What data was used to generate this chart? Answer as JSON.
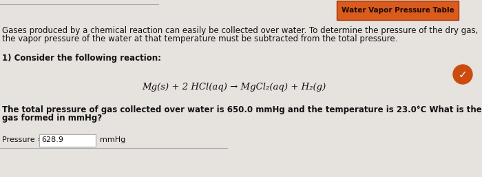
{
  "bg_color": "#e6e2de",
  "title_box_color": "#d95b1e",
  "title_box_text": "Water Vapor Pressure Table",
  "title_box_text_color": "#1a0a00",
  "intro_line1": "Gases produced by a chemical reaction can easily be collected over water. To determine the pressure of the dry gas,",
  "intro_line2": "the vapor pressure of the water at that temperature must be subtracted from the total pressure.",
  "section_label": "1) Consider the following reaction:",
  "equation": "Mg(s) + 2 HCl(aq) → MgCl₂(aq) + H₂(g)",
  "question_line1": "The total pressure of gas collected over water is 650.0 mmHg and the temperature is 23.0°C What is the pressure of hydrogen",
  "question_line2": "gas formed in mmHg?",
  "answer_label": "Pressure = ",
  "answer_value": "628.9",
  "answer_unit": "mmHg",
  "check_color": "#cc4c10",
  "input_box_color": "#ffffff",
  "input_box_border": "#aaaaaa",
  "text_color": "#111111",
  "separator_color": "#aaaaaa",
  "font_size_main": 8.5,
  "font_size_equation": 9.5,
  "font_size_title": 7.5,
  "font_size_answer": 8.0
}
